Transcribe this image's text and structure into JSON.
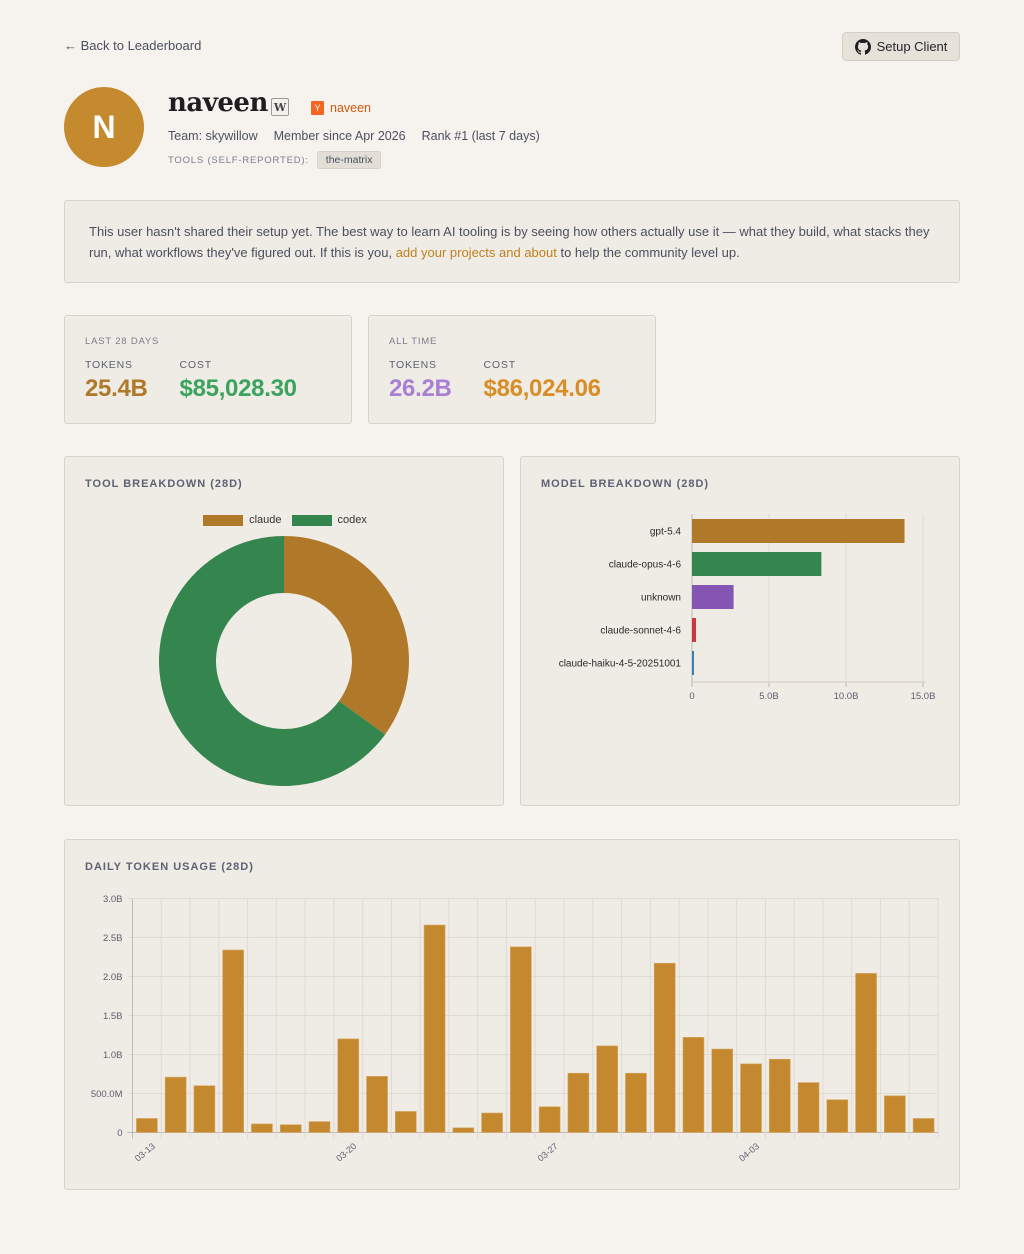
{
  "nav": {
    "back_label": "← Back to Leaderboard",
    "setup_label": "Setup Client"
  },
  "profile": {
    "avatar_initial": "N",
    "username": "naveen",
    "w_badge": "W",
    "hn_logo": "Y",
    "hn_handle": "naveen",
    "team": "Team: skywillow",
    "member_since": "Member since Apr 2026",
    "rank": "Rank #1 (last 7 days)",
    "tools_label": "TOOLS (SELF-REPORTED):",
    "tools": [
      "the-matrix"
    ]
  },
  "notice": {
    "text_before": "This user hasn't shared their setup yet. The best way to learn AI tooling is by seeing how others actually use it — what they build, what stacks they run, what workflows they've figured out. If this is you, ",
    "link_text": "add your projects and about",
    "text_after": " to help the community level up."
  },
  "stats": [
    {
      "title": "LAST 28 DAYS",
      "tokens_label": "TOKENS",
      "tokens": "25.4B",
      "tokens_color": "#b0782a",
      "cost_label": "COST",
      "cost": "$85,028.30",
      "cost_color": "#3aa45f"
    },
    {
      "title": "ALL TIME",
      "tokens_label": "TOKENS",
      "tokens": "26.2B",
      "tokens_color": "#a97fd6",
      "cost_label": "COST",
      "cost": "$86,024.06",
      "cost_color": "#d88e27"
    }
  ],
  "panels": {
    "tool_title": "TOOL BREAKDOWN (28D)",
    "model_title": "MODEL BREAKDOWN (28D)",
    "daily_title": "DAILY TOKEN USAGE (28D)"
  },
  "chart_data": [
    {
      "type": "pie",
      "title": "TOOL BREAKDOWN (28D)",
      "legend": "top",
      "donut": true,
      "categories": [
        "claude",
        "codex"
      ],
      "values": [
        35,
        65
      ],
      "unit": "percent",
      "colors": [
        "#b0792a",
        "#35854f"
      ]
    },
    {
      "type": "bar",
      "orientation": "horizontal",
      "title": "MODEL BREAKDOWN (28D)",
      "categories": [
        "gpt-5.4",
        "claude-opus-4-6",
        "unknown",
        "claude-sonnet-4-6",
        "claude-haiku-4-5-20251001"
      ],
      "values": [
        13.8,
        8.4,
        2.7,
        0.26,
        0.1
      ],
      "unit": "B tokens",
      "colors": [
        "#b0792a",
        "#35854f",
        "#8555b3",
        "#c93b3b",
        "#3d7fae"
      ],
      "xlim": [
        0,
        15
      ],
      "xticks": [
        "0",
        "5.0B",
        "10.0B",
        "15.0B"
      ],
      "grid": true
    },
    {
      "type": "bar",
      "title": "DAILY TOKEN USAGE (28D)",
      "categories": [
        "03-13",
        "03-14",
        "03-15",
        "03-16",
        "03-17",
        "03-18",
        "03-19",
        "03-20",
        "03-21",
        "03-22",
        "03-23",
        "03-24",
        "03-25",
        "03-26",
        "03-27",
        "03-28",
        "03-29",
        "03-30",
        "03-31",
        "04-01",
        "04-02",
        "04-03",
        "04-04",
        "04-05",
        "04-06",
        "04-07",
        "04-08",
        "04-09"
      ],
      "xtick_labels": [
        "03-13",
        "03-20",
        "03-27",
        "04-03"
      ],
      "values": [
        0.18,
        0.71,
        0.6,
        2.34,
        0.11,
        0.1,
        0.14,
        1.2,
        0.72,
        0.27,
        2.66,
        0.06,
        0.25,
        2.38,
        0.33,
        0.76,
        1.11,
        0.76,
        2.17,
        1.22,
        1.07,
        0.88,
        0.94,
        0.64,
        0.42,
        2.04,
        0.47,
        0.18
      ],
      "unit": "B tokens",
      "ylim": [
        0,
        3
      ],
      "yticks": [
        "0",
        "500.0M",
        "1.0B",
        "1.5B",
        "2.0B",
        "2.5B",
        "3.0B"
      ],
      "color": "#c4892e",
      "grid": true
    }
  ]
}
